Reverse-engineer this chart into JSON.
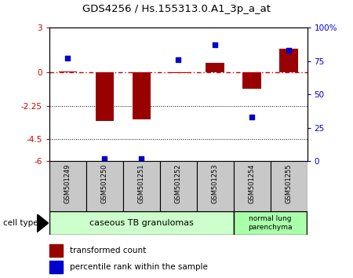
{
  "title": "GDS4256 / Hs.155313.0.A1_3p_a_at",
  "samples": [
    "GSM501249",
    "GSM501250",
    "GSM501251",
    "GSM501252",
    "GSM501253",
    "GSM501254",
    "GSM501255"
  ],
  "transformed_count": [
    0.05,
    -3.3,
    -3.2,
    -0.05,
    0.65,
    -1.1,
    1.6
  ],
  "percentile_rank": [
    77,
    2,
    2,
    76,
    87,
    33,
    83
  ],
  "left_ylim": [
    -6,
    3
  ],
  "right_ylim": [
    0,
    100
  ],
  "left_yticks": [
    -6,
    -4.5,
    -2.25,
    0,
    3
  ],
  "left_ytick_labels": [
    "-6",
    "-4.5",
    "-2.25",
    "0",
    "3"
  ],
  "right_yticks": [
    0,
    25,
    50,
    75,
    100
  ],
  "right_ytick_labels": [
    "0",
    "25",
    "50",
    "75",
    "100%"
  ],
  "hline_y": 0,
  "dotted_lines": [
    -2.25,
    -4.5
  ],
  "bar_color": "#990000",
  "scatter_color": "#0000cc",
  "hline_color": "#cc0000",
  "group1_label": "caseous TB granulomas",
  "group2_label": "normal lung\nparenchyma",
  "group1_color": "#ccffcc",
  "group2_color": "#aaffaa",
  "cell_type_label": "cell type",
  "legend_red": "transformed count",
  "legend_blue": "percentile rank within the sample",
  "bar_width": 0.5,
  "scatter_size": 25
}
